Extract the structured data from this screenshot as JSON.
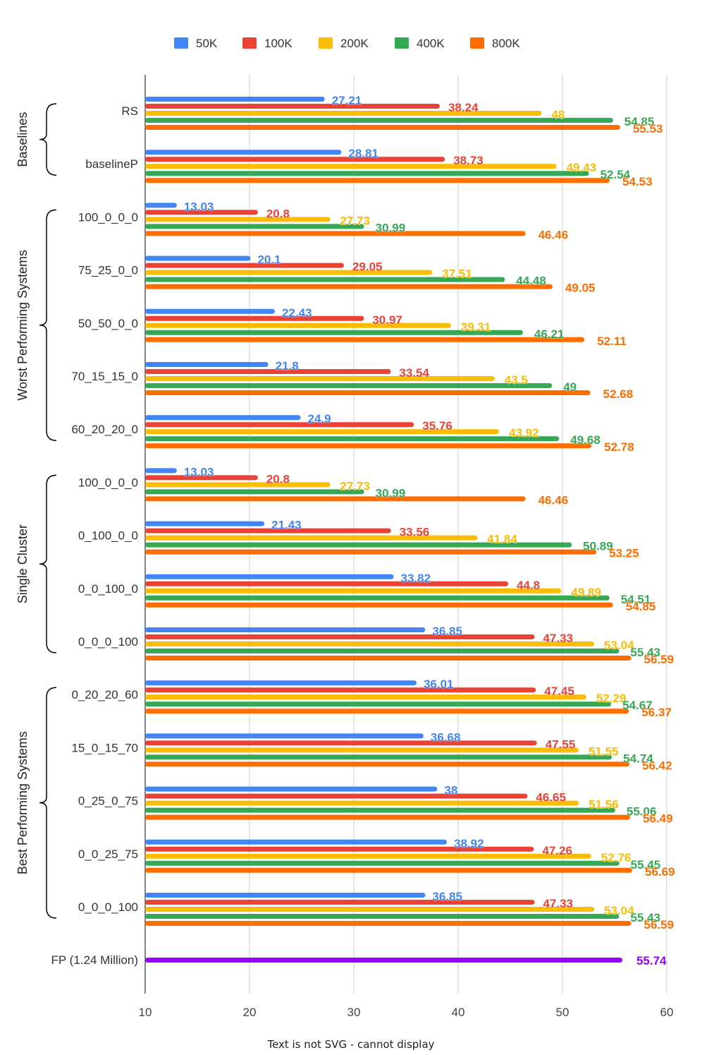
{
  "chart_data": {
    "type": "bar",
    "orientation": "horizontal",
    "title": "",
    "xlabel": "",
    "ylabel": "",
    "xlim": [
      10,
      60
    ],
    "xticks": [
      10,
      20,
      30,
      40,
      50,
      60
    ],
    "grid": true,
    "legend_position": "top",
    "legend": [
      {
        "name": "50K",
        "color": "#4285F4"
      },
      {
        "name": "100K",
        "color": "#EA4335"
      },
      {
        "name": "200K",
        "color": "#FBBC04"
      },
      {
        "name": "400K",
        "color": "#34A853"
      },
      {
        "name": "800K",
        "color": "#FF6D01"
      }
    ],
    "groups": [
      {
        "name": "Baselines",
        "rows": [
          0,
          1
        ]
      },
      {
        "name": "Worst Performing Systems",
        "rows": [
          2,
          3,
          4,
          5,
          6
        ]
      },
      {
        "name": "Single Cluster",
        "rows": [
          7,
          8,
          9,
          10
        ]
      },
      {
        "name": "Best Performing Systems",
        "rows": [
          11,
          12,
          13,
          14,
          15
        ]
      }
    ],
    "categories": [
      "RS",
      "baselineP",
      "100_0_0_0",
      "75_25_0_0",
      "50_50_0_0",
      "70_15_15_0",
      "60_20_20_0",
      "100_0_0_0",
      "0_100_0_0",
      "0_0_100_0",
      "0_0_0_100",
      "0_20_20_60",
      "15_0_15_70",
      "0_25_0_75",
      "0_0_25_75",
      "0_0_0_100"
    ],
    "series": [
      {
        "name": "50K",
        "color": "#4285F4",
        "values": [
          27.21,
          28.81,
          13.03,
          20.1,
          22.43,
          21.8,
          24.9,
          13.03,
          21.43,
          33.82,
          36.85,
          36.01,
          36.68,
          38,
          38.92,
          36.85
        ]
      },
      {
        "name": "100K",
        "color": "#EA4335",
        "values": [
          38.24,
          38.73,
          20.8,
          29.05,
          30.97,
          33.54,
          35.76,
          20.8,
          33.56,
          44.8,
          47.33,
          47.45,
          47.55,
          46.65,
          47.26,
          47.33
        ]
      },
      {
        "name": "200K",
        "color": "#FBBC04",
        "values": [
          48,
          49.43,
          27.73,
          37.51,
          39.31,
          43.5,
          43.92,
          27.73,
          41.84,
          49.89,
          53.04,
          52.29,
          51.55,
          51.56,
          52.76,
          53.04
        ]
      },
      {
        "name": "400K",
        "color": "#34A853",
        "values": [
          54.85,
          52.54,
          30.99,
          44.48,
          46.21,
          49,
          49.68,
          30.99,
          50.89,
          54.51,
          55.43,
          54.67,
          54.74,
          55.06,
          55.45,
          55.43
        ]
      },
      {
        "name": "800K",
        "color": "#FF6D01",
        "values": [
          55.53,
          54.53,
          46.46,
          49.05,
          52.11,
          52.68,
          52.78,
          46.46,
          53.25,
          54.85,
          56.59,
          56.37,
          56.42,
          56.49,
          56.69,
          56.59
        ]
      }
    ],
    "extra_bar": {
      "label": "FP (1.24 Million)",
      "value": 55.74,
      "color": "#9900FF"
    }
  },
  "footer_note": "Text is not SVG - cannot display"
}
